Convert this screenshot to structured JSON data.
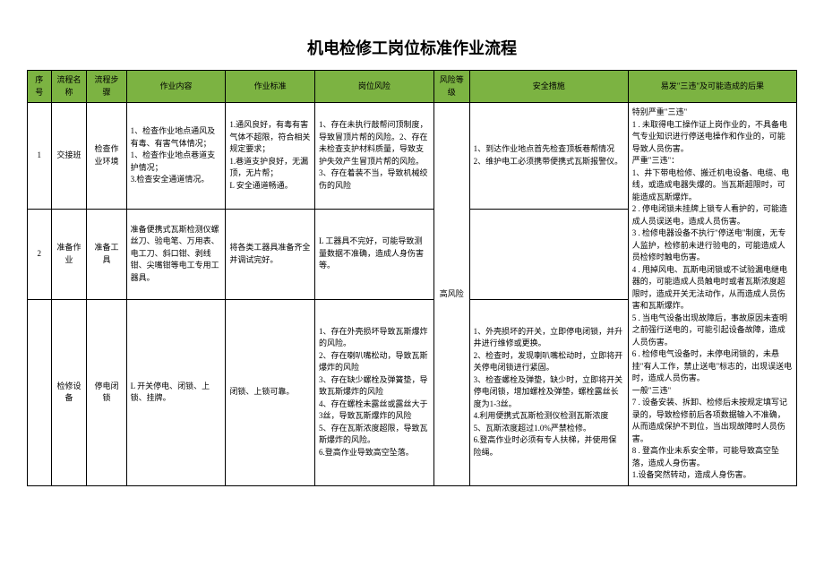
{
  "title": "机电检修工岗位标准作业流程",
  "headers": [
    "序号",
    "流程名称",
    "流程步骤",
    "作业内容",
    "作业标准",
    "岗位风险",
    "风险等级",
    "安全措施",
    "易发\"三违\"及可能造成的后果"
  ],
  "rows": [
    {
      "seq": "1",
      "name": "交接班",
      "step": "检查作业环境",
      "work": "1、检查作业地点通风及有毒、有害气体情况；\n1、检查作业地点巷道支护情况；\n3.检查安全通道情况。",
      "std": "1.通风良好，有毒有害气体不超限，符合相关规定要求；\n1.巷道支护良好，无漏顶，无片帮；\nL 安全通道畅通。",
      "risk": "1、存在未执行敲帮问顶制度，导致冒顶片帮的风险。2、存在未检查支护材料质量，导致支护失效产生冒顶片帮的风险。3、存在着装不当，导致机械绞伤的风险",
      "level": "高风险",
      "safe": "1、到达作业地点首先检查顶板巷帮情况\n2、维护电工必须携带便携式瓦斯报警仪。",
      "cons": "特别严重\"三违\"\n1  . 未取得电工操作证上岗作业的，不具备电气专业知识进行停送电操作和作业的，可能导致人员伤害。\n严重\"三违\"：\n1、井下带电检修、搬迁机电设备、电缆、电线，或造成电器失爆的。当瓦斯超限时，可能造成瓦斯爆炸。\n2  . 停电闭锁未挂牌上锁专人看护的，可能造成人员误送电，造成人员伤害。\n3  . 检修电器设备不执行\"停送电\"制度，无专人监护，检修前未进行验电的，可能造成人员检修时触电伤害。\n4  . 甩掉风电、瓦斯电闭锁或不试验漏电继电器的，可能造成人员触电时或者瓦斯浓度超限时，造成开关无法动作，从而造成人员伤害和瓦斯爆炸。\n5  . 当电气设备出现故障后，事故原因未查明之前强行送电的，可能引起设备故障，造成人员伤害。\n6  . 检修电气设备时，未停电闭锁的，未悬挂\"有人工作，禁止送电\"标志的，出现误送电时，造成人员伤害。\n一般\"三违\"\n7  . 设备安装、拆卸、检修后未按规定填写记录的，导致检修前后各项数据输入不准确，从而造成保护不到位，当出现故障时人员伤害。\n8  . 登高作业未系安全带，可能导致高空坠落，造成人身伤害。\n1.设备突然转动，造成人身伤害。"
    },
    {
      "seq": "2",
      "name": "准备作业",
      "step": "准备工具",
      "work": "准备便携式瓦斯检测仪螺丝刀、验电笔、万用表、电工刀、斜口钳、剥线钳、尖嘴钳等电工专用工器具。",
      "std": "将各类工器具准备齐全并调试完好。",
      "risk": "L 工器具不完好，可能导致测量数据不准确，造成人身伤害等。"
    },
    {
      "seq": "",
      "name": "检修设备",
      "step": "停电闭锁",
      "work": "L 开关停电、闭锁、上锁、挂牌。",
      "std": "闭锁、上锁可靠。",
      "risk": "1、存在外壳损坏导致瓦斯爆炸的风险。\n2、存在喇叭嘴松动，导致瓦斯爆炸的风险\n3、存在缺少螺栓及弹簧垫，导致瓦斯爆炸的风险\n4、存在螺栓未露丝或露丝大于3丝，导致瓦斯爆炸的风险\n5、存在瓦斯浓度超限，导致瓦斯爆炸的风险。\n6.登高作业导致高空坠落。",
      "safe": "1、外壳损坏的开关，立即停电闭锁，并升井进行维修或更换。\n2、检查时，发现喇叭嘴松动时，立即将开关停电闭锁进行紧固。\n3、检查螺栓及弹垫，缺少时，立即将开关停电闭锁，增加螺栓及弹垫，螺栓露丝长度为1-3丝。\n4.利用便携式瓦斯检测仪检测瓦斯浓度\n5、瓦斯浓度超过1.0%严禁检修。\n6.登高作业时必须有专人扶梯，并使用保险绳。"
    }
  ],
  "colors": {
    "header_bg": "#7cb342",
    "border": "#000000",
    "text": "#000000",
    "background": "#ffffff"
  }
}
